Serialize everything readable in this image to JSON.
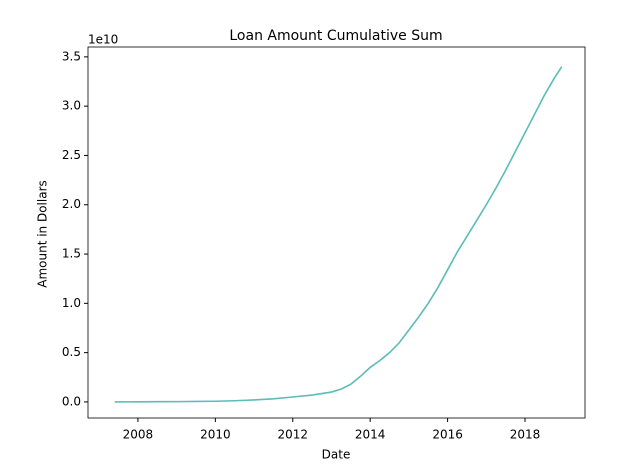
{
  "chart_data": {
    "type": "line",
    "title": "Loan Amount Cumulative Sum",
    "xlabel": "Date",
    "ylabel": "Amount in Dollars",
    "y_offset_label": "1e10",
    "x": [
      2007.4,
      2008,
      2008.5,
      2009,
      2009.5,
      2010,
      2010.5,
      2011,
      2011.5,
      2012,
      2012.5,
      2013,
      2013.25,
      2013.5,
      2013.75,
      2014,
      2014.25,
      2014.5,
      2014.75,
      2015,
      2015.25,
      2015.5,
      2015.75,
      2016,
      2016.25,
      2016.5,
      2016.75,
      2017,
      2017.25,
      2017.5,
      2017.75,
      2018,
      2018.25,
      2018.5,
      2018.75,
      2018.95
    ],
    "series": [
      {
        "color": "#5bbcb8",
        "values": [
          0,
          0.001,
          0.002,
          0.003,
          0.005,
          0.007,
          0.012,
          0.02,
          0.032,
          0.05,
          0.07,
          0.1,
          0.13,
          0.18,
          0.26,
          0.35,
          0.42,
          0.5,
          0.6,
          0.73,
          0.86,
          1.0,
          1.16,
          1.34,
          1.52,
          1.68,
          1.84,
          2.0,
          2.17,
          2.35,
          2.54,
          2.73,
          2.92,
          3.11,
          3.28,
          3.4
        ]
      }
    ],
    "xlim": [
      2006.71,
      2019.55
    ],
    "xticks": [
      2008,
      2010,
      2012,
      2014,
      2016,
      2018
    ],
    "ylim": [
      -0.163,
      3.6
    ],
    "yticks": [
      {
        "value": 0,
        "label": "0.0"
      },
      {
        "value": 0.5,
        "label": "0.5"
      },
      {
        "value": 1,
        "label": "1.0"
      },
      {
        "value": 1.5,
        "label": "1.5"
      },
      {
        "value": 2,
        "label": "2.0"
      },
      {
        "value": 2.5,
        "label": "2.5"
      },
      {
        "value": 3,
        "label": "3.0"
      },
      {
        "value": 3.5,
        "label": "3.5"
      }
    ]
  }
}
